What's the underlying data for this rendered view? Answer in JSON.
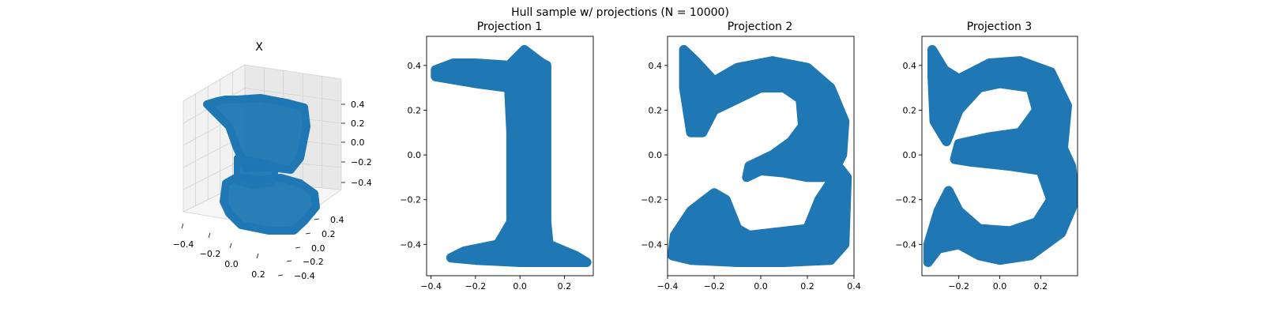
{
  "figure": {
    "suptitle": "Hull sample w/ projections (N = 10000)",
    "point_color": "#1f77b4"
  },
  "chart_data": [
    {
      "type": "scatter",
      "title": "X",
      "projection": "3d",
      "note": "3D scatter of the hull sample; its point cloud is a 3D shape whose three 2D projections are the digits 1, 2 and 3",
      "x_ticks": [
        "−0.4",
        "−0.2",
        "0.0",
        "0.2"
      ],
      "y_ticks": [
        "−0.4",
        "−0.2",
        "0.0",
        "0.2",
        "0.4"
      ],
      "z_ticks": [
        "−0.4",
        "−0.2",
        "0.0",
        "0.2",
        "0.4"
      ],
      "xlim": [
        -0.4,
        0.3
      ],
      "ylim": [
        -0.4,
        0.4
      ],
      "zlim": [
        -0.5,
        0.5
      ],
      "grid": true
    },
    {
      "type": "scatter",
      "title": "Projection 1",
      "shape": "digit 1",
      "xlim": [
        -0.42,
        0.33
      ],
      "ylim": [
        -0.54,
        0.53
      ],
      "x_ticks": [
        -0.4,
        -0.2,
        0.0,
        0.2
      ],
      "x_tick_labels": [
        "−0.4",
        "−0.2",
        "0.0",
        "0.2"
      ],
      "y_ticks": [
        -0.4,
        -0.2,
        0.0,
        0.2,
        0.4
      ],
      "y_tick_labels": [
        "−0.4",
        "−0.2",
        "0.0",
        "0.2",
        "0.4"
      ],
      "outline": [
        [
          -0.38,
          0.38
        ],
        [
          -0.3,
          0.41
        ],
        [
          -0.2,
          0.41
        ],
        [
          -0.05,
          0.4
        ],
        [
          0.02,
          0.47
        ],
        [
          0.1,
          0.41
        ],
        [
          0.12,
          0.4
        ],
        [
          0.12,
          -0.3
        ],
        [
          0.13,
          -0.4
        ],
        [
          0.25,
          -0.45
        ],
        [
          0.3,
          -0.48
        ],
        [
          0.2,
          -0.48
        ],
        [
          0.0,
          -0.48
        ],
        [
          -0.2,
          -0.47
        ],
        [
          -0.31,
          -0.46
        ],
        [
          -0.25,
          -0.43
        ],
        [
          -0.1,
          -0.4
        ],
        [
          -0.04,
          -0.3
        ],
        [
          -0.04,
          0.1
        ],
        [
          -0.05,
          0.3
        ],
        [
          -0.2,
          0.32
        ],
        [
          -0.38,
          0.35
        ]
      ],
      "grid": false
    },
    {
      "type": "scatter",
      "title": "Projection 2",
      "shape": "digit 2",
      "xlim": [
        -0.4,
        0.4
      ],
      "ylim": [
        -0.54,
        0.53
      ],
      "x_ticks": [
        -0.4,
        -0.2,
        0.0,
        0.2,
        0.4
      ],
      "x_tick_labels": [
        "−0.4",
        "−0.2",
        "0.0",
        "0.2",
        "0.4"
      ],
      "y_ticks": [
        -0.4,
        -0.2,
        0.0,
        0.2,
        0.4
      ],
      "y_tick_labels": [
        "−0.4",
        "−0.2",
        "0.0",
        "0.2",
        "0.4"
      ],
      "outline": [
        [
          -0.33,
          0.47
        ],
        [
          -0.28,
          0.42
        ],
        [
          -0.2,
          0.33
        ],
        [
          -0.1,
          0.39
        ],
        [
          0.05,
          0.42
        ],
        [
          0.2,
          0.39
        ],
        [
          0.3,
          0.3
        ],
        [
          0.36,
          0.15
        ],
        [
          0.35,
          0.0
        ],
        [
          0.3,
          -0.1
        ],
        [
          0.2,
          -0.1
        ],
        [
          0.1,
          -0.08
        ],
        [
          0.0,
          -0.07
        ],
        [
          -0.06,
          -0.1
        ],
        [
          -0.05,
          -0.05
        ],
        [
          0.05,
          0.0
        ],
        [
          0.13,
          0.06
        ],
        [
          0.18,
          0.13
        ],
        [
          0.17,
          0.25
        ],
        [
          0.1,
          0.3
        ],
        [
          0.0,
          0.3
        ],
        [
          -0.1,
          0.25
        ],
        [
          -0.2,
          0.2
        ],
        [
          -0.25,
          0.1
        ],
        [
          -0.3,
          0.1
        ],
        [
          -0.33,
          0.3
        ]
      ],
      "outline_2": [
        [
          -0.37,
          -0.36
        ],
        [
          -0.3,
          -0.25
        ],
        [
          -0.2,
          -0.17
        ],
        [
          -0.15,
          -0.2
        ],
        [
          -0.1,
          -0.33
        ],
        [
          -0.05,
          -0.36
        ],
        [
          0.2,
          -0.33
        ],
        [
          0.25,
          -0.2
        ],
        [
          0.34,
          -0.06
        ],
        [
          0.37,
          -0.1
        ],
        [
          0.36,
          -0.4
        ],
        [
          0.3,
          -0.47
        ],
        [
          0.1,
          -0.48
        ],
        [
          -0.1,
          -0.48
        ],
        [
          -0.3,
          -0.47
        ],
        [
          -0.38,
          -0.45
        ]
      ],
      "grid": false
    },
    {
      "type": "scatter",
      "title": "Projection 3",
      "shape": "digit 3",
      "xlim": [
        -0.38,
        0.38
      ],
      "ylim": [
        -0.54,
        0.53
      ],
      "x_ticks": [
        -0.2,
        0.0,
        0.2
      ],
      "x_tick_labels": [
        "−0.2",
        "0.0",
        "0.2"
      ],
      "y_ticks": [
        -0.4,
        -0.2,
        0.0,
        0.2,
        0.4
      ],
      "y_tick_labels": [
        "−0.4",
        "−0.2",
        "0.0",
        "0.2",
        "0.4"
      ],
      "outline": [
        [
          -0.33,
          0.47
        ],
        [
          -0.27,
          0.38
        ],
        [
          -0.2,
          0.34
        ],
        [
          -0.05,
          0.41
        ],
        [
          0.1,
          0.42
        ],
        [
          0.25,
          0.37
        ],
        [
          0.33,
          0.22
        ],
        [
          0.31,
          0.03
        ],
        [
          0.35,
          -0.05
        ],
        [
          0.37,
          -0.2
        ],
        [
          0.3,
          -0.35
        ],
        [
          0.15,
          -0.45
        ],
        [
          0.0,
          -0.47
        ],
        [
          -0.1,
          -0.45
        ],
        [
          -0.2,
          -0.4
        ],
        [
          -0.3,
          -0.42
        ],
        [
          -0.35,
          -0.48
        ],
        [
          -0.35,
          -0.4
        ],
        [
          -0.3,
          -0.25
        ],
        [
          -0.25,
          -0.16
        ],
        [
          -0.2,
          -0.25
        ],
        [
          -0.1,
          -0.33
        ],
        [
          0.05,
          -0.34
        ],
        [
          0.18,
          -0.3
        ],
        [
          0.25,
          -0.2
        ],
        [
          0.2,
          -0.07
        ],
        [
          0.05,
          -0.05
        ],
        [
          -0.15,
          -0.03
        ],
        [
          -0.22,
          -0.02
        ],
        [
          -0.2,
          0.05
        ],
        [
          -0.05,
          0.08
        ],
        [
          0.1,
          0.1
        ],
        [
          0.18,
          0.2
        ],
        [
          0.15,
          0.3
        ],
        [
          0.0,
          0.32
        ],
        [
          -0.1,
          0.3
        ],
        [
          -0.2,
          0.2
        ],
        [
          -0.26,
          0.06
        ],
        [
          -0.32,
          0.15
        ],
        [
          -0.33,
          0.35
        ]
      ],
      "grid": false
    }
  ]
}
